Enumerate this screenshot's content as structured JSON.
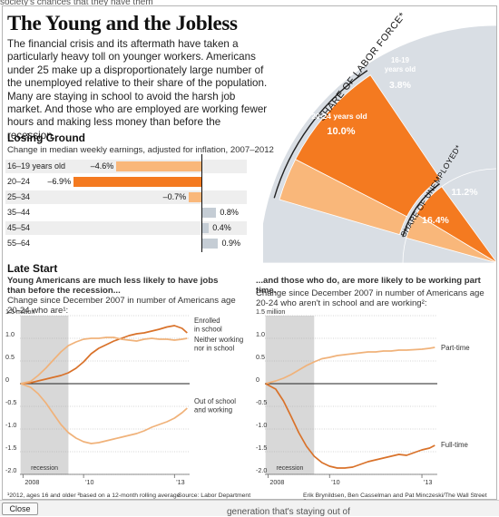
{
  "page": {
    "top_clipped_text": "society's chances that they have them",
    "title": "The Young and the Jobless",
    "intro": "The financial crisis and its aftermath have taken a particularly heavy toll on younger workers. Americans under 25 make up a disproportionately large number of the unemployed relative to their share of the population. Many are staying in school to avoid the harsh job market. And those who are employed are working fewer hours and making less money than before the recession.",
    "close_button": "Close",
    "bottom_clipped_text": "generation that's staying out of"
  },
  "colors": {
    "orange_dark": "#f47a20",
    "orange_light": "#f9b77a",
    "gray_bg": "#d9dee4",
    "gray_bar": "#c5cdd5",
    "recession_shade": "#d8d8d8",
    "line_dark": "#d9722a",
    "line_light": "#f0b27a"
  },
  "chart_data": [
    {
      "type": "pie",
      "title": "",
      "rings": [
        {
          "label": "SHARE OF LABOR FORCE*",
          "slices": [
            {
              "label": "20-24 years old",
              "value": 10.0,
              "display": "10.0%"
            },
            {
              "label": "16-19 years old",
              "value": 3.8,
              "display": "3.8%"
            }
          ]
        },
        {
          "label": "SHARE OF UNEMPLOYED*",
          "slices": [
            {
              "label": "20-24",
              "value": 16.4,
              "display": "16.4%"
            },
            {
              "label": "16-19",
              "value": 11.2,
              "display": "11.2%"
            }
          ]
        }
      ],
      "labels": {
        "labor_force": "SHARE OF LABOR FORCE*",
        "unemployed": "SHARE OF UNEMPLOYED*",
        "lf_a_name": "20-24 years old",
        "lf_a_value": "10.0%",
        "lf_b_name_1": "16-19",
        "lf_b_name_2": "years old",
        "lf_b_value": "3.8%",
        "un_a_value": "16.4%",
        "un_b_value": "11.2%"
      }
    },
    {
      "type": "bar",
      "title": "Losing Ground",
      "subtitle": "Change in median weekly earnings, adjusted for inflation, 2007–2012",
      "categories": [
        "16–19 years old",
        "20–24",
        "25–34",
        "35–44",
        "45–54",
        "55–64"
      ],
      "values": [
        -4.6,
        -6.9,
        -0.7,
        0.8,
        0.4,
        0.9
      ],
      "labels": [
        "–4.6%",
        "–6.9%",
        "–0.7%",
        "0.8%",
        "0.4%",
        "0.9%"
      ]
    },
    {
      "type": "line",
      "title": "Late Start",
      "subtitle": "Young Americans are much less likely to have jobs than before the recession...",
      "note": "Change since December 2007 in number of Americans age 20-24 who are¹:",
      "ylim": [
        -2.0,
        1.5
      ],
      "yticks": [
        1.5,
        1.0,
        0.5,
        0,
        -0.5,
        -1.0,
        -1.5,
        -2.0
      ],
      "ytick_labels": [
        "1.5 million",
        "1.0",
        "0.5",
        "0",
        "-0.5",
        "-1.0",
        "-1.5",
        "-2.0"
      ],
      "xticks": [
        {
          "x": 2008.0,
          "label": "2008"
        },
        {
          "x": 2010.0,
          "label": "'10"
        },
        {
          "x": 2013.0,
          "label": "'13"
        }
      ],
      "xlim": [
        2007.9,
        2013.5
      ],
      "recession": [
        2007.92,
        2009.5
      ],
      "recession_label": "recession",
      "series": [
        {
          "name": "Enrolled in school",
          "color": "#d9722a",
          "x": [
            2007.92,
            2008.25,
            2008.5,
            2008.75,
            2009.0,
            2009.25,
            2009.5,
            2009.75,
            2010.0,
            2010.25,
            2010.5,
            2010.75,
            2011.0,
            2011.25,
            2011.5,
            2011.75,
            2012.0,
            2012.25,
            2012.5,
            2012.75,
            2013.0,
            2013.25,
            2013.42
          ],
          "y": [
            0.0,
            0.02,
            0.06,
            0.1,
            0.14,
            0.18,
            0.24,
            0.34,
            0.48,
            0.66,
            0.78,
            0.86,
            0.94,
            1.0,
            1.06,
            1.1,
            1.12,
            1.16,
            1.2,
            1.25,
            1.28,
            1.22,
            1.12
          ]
        },
        {
          "name": "Neither working nor in school",
          "color": "#f0b27a",
          "x": [
            2007.92,
            2008.25,
            2008.5,
            2008.75,
            2009.0,
            2009.25,
            2009.5,
            2009.75,
            2010.0,
            2010.25,
            2010.5,
            2010.75,
            2011.0,
            2011.25,
            2011.5,
            2011.75,
            2012.0,
            2012.25,
            2012.5,
            2012.75,
            2013.0,
            2013.25,
            2013.42
          ],
          "y": [
            0.0,
            0.05,
            0.18,
            0.34,
            0.52,
            0.7,
            0.84,
            0.92,
            0.98,
            1.0,
            1.0,
            1.02,
            1.02,
            0.98,
            0.96,
            0.94,
            0.98,
            1.0,
            0.98,
            0.98,
            0.96,
            0.98,
            1.0
          ]
        },
        {
          "name": "Out of school and working",
          "color": "#f0b27a",
          "x": [
            2007.92,
            2008.25,
            2008.5,
            2008.75,
            2009.0,
            2009.25,
            2009.5,
            2009.75,
            2010.0,
            2010.25,
            2010.5,
            2010.75,
            2011.0,
            2011.25,
            2011.5,
            2011.75,
            2012.0,
            2012.25,
            2012.5,
            2012.75,
            2013.0,
            2013.25,
            2013.42
          ],
          "y": [
            0.0,
            -0.08,
            -0.22,
            -0.42,
            -0.66,
            -0.9,
            -1.08,
            -1.2,
            -1.28,
            -1.32,
            -1.3,
            -1.26,
            -1.22,
            -1.18,
            -1.14,
            -1.1,
            -1.04,
            -0.96,
            -0.9,
            -0.84,
            -0.76,
            -0.64,
            -0.54
          ]
        }
      ],
      "series_labels": [
        {
          "lines": [
            "Enrolled",
            "in school"
          ]
        },
        {
          "lines": [
            "Neither working",
            "nor in school"
          ]
        },
        {
          "lines": [
            "Out of school",
            "and working"
          ]
        }
      ],
      "footnote": "¹2012, ages 16 and older   ²based on a 12-month rolling average",
      "source": "Source: Labor Department"
    },
    {
      "type": "line",
      "title": "",
      "subtitle": "...and those who do, are more likely to be working part time.",
      "note": "Change since December 2007 in number of Americans age 20-24 who aren't in school and are working²:",
      "ylim": [
        -2.0,
        1.5
      ],
      "yticks": [
        1.5,
        1.0,
        0.5,
        0,
        -0.5,
        -1.0,
        -1.5,
        -2.0
      ],
      "ytick_labels": [
        "1.5 million",
        "1.0",
        "0.5",
        "0",
        "-0.5",
        "-1.0",
        "-1.5",
        "-2.0"
      ],
      "xticks": [
        {
          "x": 2008.0,
          "label": "2008"
        },
        {
          "x": 2010.0,
          "label": "'10"
        },
        {
          "x": 2013.0,
          "label": "'13"
        }
      ],
      "xlim": [
        2007.9,
        2013.5
      ],
      "recession": [
        2007.92,
        2009.5
      ],
      "recession_label": "recession",
      "series": [
        {
          "name": "Part-time",
          "color": "#f0b27a",
          "x": [
            2007.92,
            2008.25,
            2008.5,
            2008.75,
            2009.0,
            2009.25,
            2009.5,
            2009.75,
            2010.0,
            2010.25,
            2010.5,
            2010.75,
            2011.0,
            2011.25,
            2011.5,
            2011.75,
            2012.0,
            2012.25,
            2012.5,
            2012.75,
            2013.0,
            2013.25,
            2013.42
          ],
          "y": [
            0.0,
            0.06,
            0.12,
            0.2,
            0.3,
            0.4,
            0.48,
            0.55,
            0.58,
            0.62,
            0.64,
            0.66,
            0.68,
            0.7,
            0.7,
            0.72,
            0.72,
            0.74,
            0.74,
            0.75,
            0.76,
            0.78,
            0.8
          ]
        },
        {
          "name": "Full-time",
          "color": "#d9722a",
          "x": [
            2007.92,
            2008.25,
            2008.5,
            2008.75,
            2009.0,
            2009.25,
            2009.5,
            2009.75,
            2010.0,
            2010.25,
            2010.5,
            2010.75,
            2011.0,
            2011.25,
            2011.5,
            2011.75,
            2012.0,
            2012.25,
            2012.5,
            2012.75,
            2013.0,
            2013.25,
            2013.42
          ],
          "y": [
            0.0,
            -0.12,
            -0.38,
            -0.72,
            -1.08,
            -1.38,
            -1.6,
            -1.74,
            -1.82,
            -1.86,
            -1.86,
            -1.84,
            -1.78,
            -1.72,
            -1.68,
            -1.64,
            -1.6,
            -1.56,
            -1.58,
            -1.52,
            -1.46,
            -1.42,
            -1.36
          ]
        }
      ],
      "series_labels": [
        {
          "lines": [
            "Part-time"
          ]
        },
        {
          "lines": [
            "Full-time"
          ]
        }
      ],
      "credit": "Erik Brynildsen, Ben Casselman and Pat Minczeski/The Wall Street Journal"
    }
  ]
}
